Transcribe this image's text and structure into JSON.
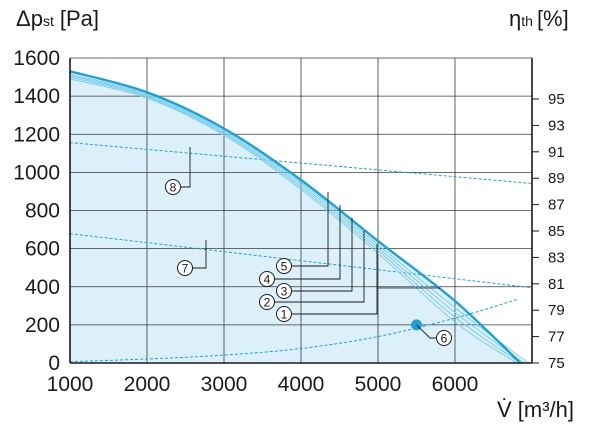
{
  "chart_data": {
    "type": "line",
    "title": "",
    "ylabel": {
      "main": "Δp",
      "sub": "st",
      "unit": "[Pa]"
    },
    "ylabel_right": {
      "main": "η",
      "sub": "th",
      "unit": "[%]"
    },
    "xlabel": "V̇ [m³/h]",
    "xlim": [
      1000,
      7000
    ],
    "ylim": [
      0,
      1600
    ],
    "ylim_right": [
      75,
      98
    ],
    "x_ticks": [
      1000,
      2000,
      3000,
      4000,
      5000,
      6000
    ],
    "x_tick_labels": [
      "1000",
      "2000",
      "3000",
      "4000",
      "5000",
      "6000"
    ],
    "y_ticks": [
      0,
      200,
      400,
      600,
      800,
      1000,
      1200,
      1400,
      1600
    ],
    "y_tick_labels": [
      "0",
      "200",
      "400",
      "600",
      "800",
      "1000",
      "1200",
      "1400",
      "1600"
    ],
    "y_right_ticks": [
      75,
      77,
      79,
      81,
      83,
      85,
      87,
      89,
      91,
      93,
      95
    ],
    "y_right_tick_labels": [
      "75",
      "77",
      "79",
      "81",
      "83",
      "85",
      "87",
      "89",
      "91",
      "93",
      "95"
    ],
    "grid": true,
    "colors": {
      "curve": "#1aa3d9",
      "fill": "#dcf0fa",
      "curve_inner": "#7ccde8",
      "dashed": "#1aa3d9",
      "grid": "#3a3a3a",
      "axis": "#1a1a1a"
    },
    "fan_curves": [
      {
        "label": "1",
        "points": [
          [
            1000,
            1490
          ],
          [
            2000,
            1390
          ],
          [
            3000,
            1195
          ],
          [
            4000,
            910
          ],
          [
            5000,
            575
          ],
          [
            6000,
            215
          ],
          [
            6800,
            0
          ]
        ]
      },
      {
        "label": "2",
        "points": [
          [
            1000,
            1500
          ],
          [
            2000,
            1397
          ],
          [
            3000,
            1203
          ],
          [
            4000,
            922
          ],
          [
            5000,
            590
          ],
          [
            6000,
            240
          ],
          [
            6850,
            0
          ]
        ]
      },
      {
        "label": "3",
        "points": [
          [
            1000,
            1508
          ],
          [
            2000,
            1403
          ],
          [
            3000,
            1211
          ],
          [
            4000,
            934
          ],
          [
            5000,
            605
          ],
          [
            6000,
            265
          ],
          [
            6900,
            0
          ]
        ]
      },
      {
        "label": "4",
        "points": [
          [
            1000,
            1515
          ],
          [
            2000,
            1410
          ],
          [
            3000,
            1219
          ],
          [
            4000,
            946
          ],
          [
            5000,
            620
          ],
          [
            6000,
            290
          ],
          [
            6950,
            0
          ]
        ]
      },
      {
        "label": "5",
        "points": [
          [
            1000,
            1530
          ],
          [
            2000,
            1420
          ],
          [
            3000,
            1230
          ],
          [
            4000,
            960
          ],
          [
            5000,
            640
          ],
          [
            6000,
            325
          ],
          [
            6850,
            0
          ]
        ]
      }
    ],
    "series": [
      {
        "label": "7",
        "x": [
          1000,
          7000
        ],
        "y_right": [
          84.8,
          80.7
        ]
      },
      {
        "label": "8",
        "x": [
          1000,
          7000
        ],
        "y_right": [
          91.7,
          88.6
        ]
      },
      {
        "label": "6",
        "x": [
          1000,
          2000,
          3000,
          4000,
          5000,
          6000,
          6800
        ],
        "y_right": [
          75.1,
          75.3,
          75.6,
          76.1,
          77.0,
          78.4,
          79.8
        ]
      }
    ],
    "operating_point": {
      "label": "6",
      "x": 5500,
      "y": 200
    },
    "callouts": [
      {
        "label": "1",
        "x_at": 5000,
        "y_mid": 400,
        "y_end": 260
      },
      {
        "label": "2",
        "x_at": 4950,
        "y_mid": 400,
        "y_end": 325
      },
      {
        "label": "3",
        "x_at": 4600,
        "y_mid": 400,
        "y_end": 390
      },
      {
        "label": "4",
        "x_at": 4250,
        "y_mid": 400,
        "y_end": 455
      },
      {
        "label": "5",
        "x_at": 3800,
        "y_mid": 400,
        "y_end": 520
      }
    ]
  }
}
